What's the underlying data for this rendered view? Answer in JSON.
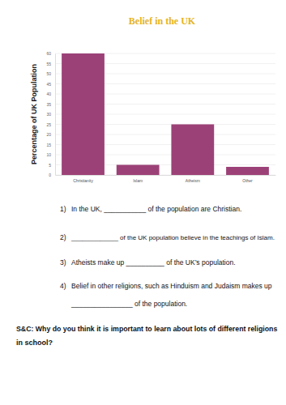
{
  "chart_data": {
    "type": "bar",
    "title": "Belief in the UK",
    "y_label": "Percentage of UK Population",
    "categories": [
      "Christianity",
      "Islam",
      "Atheism",
      "Other"
    ],
    "values": [
      60,
      5,
      25,
      4
    ],
    "color": "#9c4178",
    "ylim": [
      0,
      60
    ],
    "yticks": [
      0,
      5,
      10,
      15,
      20,
      25,
      30,
      35,
      40,
      45,
      50,
      55,
      60
    ],
    "grid": true
  },
  "questions": [
    {
      "number": "1)",
      "lines": [
        "In the UK, ___________ of the population are Christian."
      ]
    },
    {
      "number": "2)",
      "lines": [
        "_____________ of the UK population believe in the teachings of Islam."
      ]
    },
    {
      "number": "3)",
      "lines": [
        "Atheists make up __________ of the UK’s population."
      ]
    },
    {
      "number": "4)",
      "lines": [
        "Belief in other religions, such as Hinduism and Judaism makes up",
        "________________ of the population."
      ]
    }
  ],
  "sc": {
    "lines": [
      "S&C: Why do you think it is important to learn about lots of different religions",
      "in school?"
    ]
  }
}
